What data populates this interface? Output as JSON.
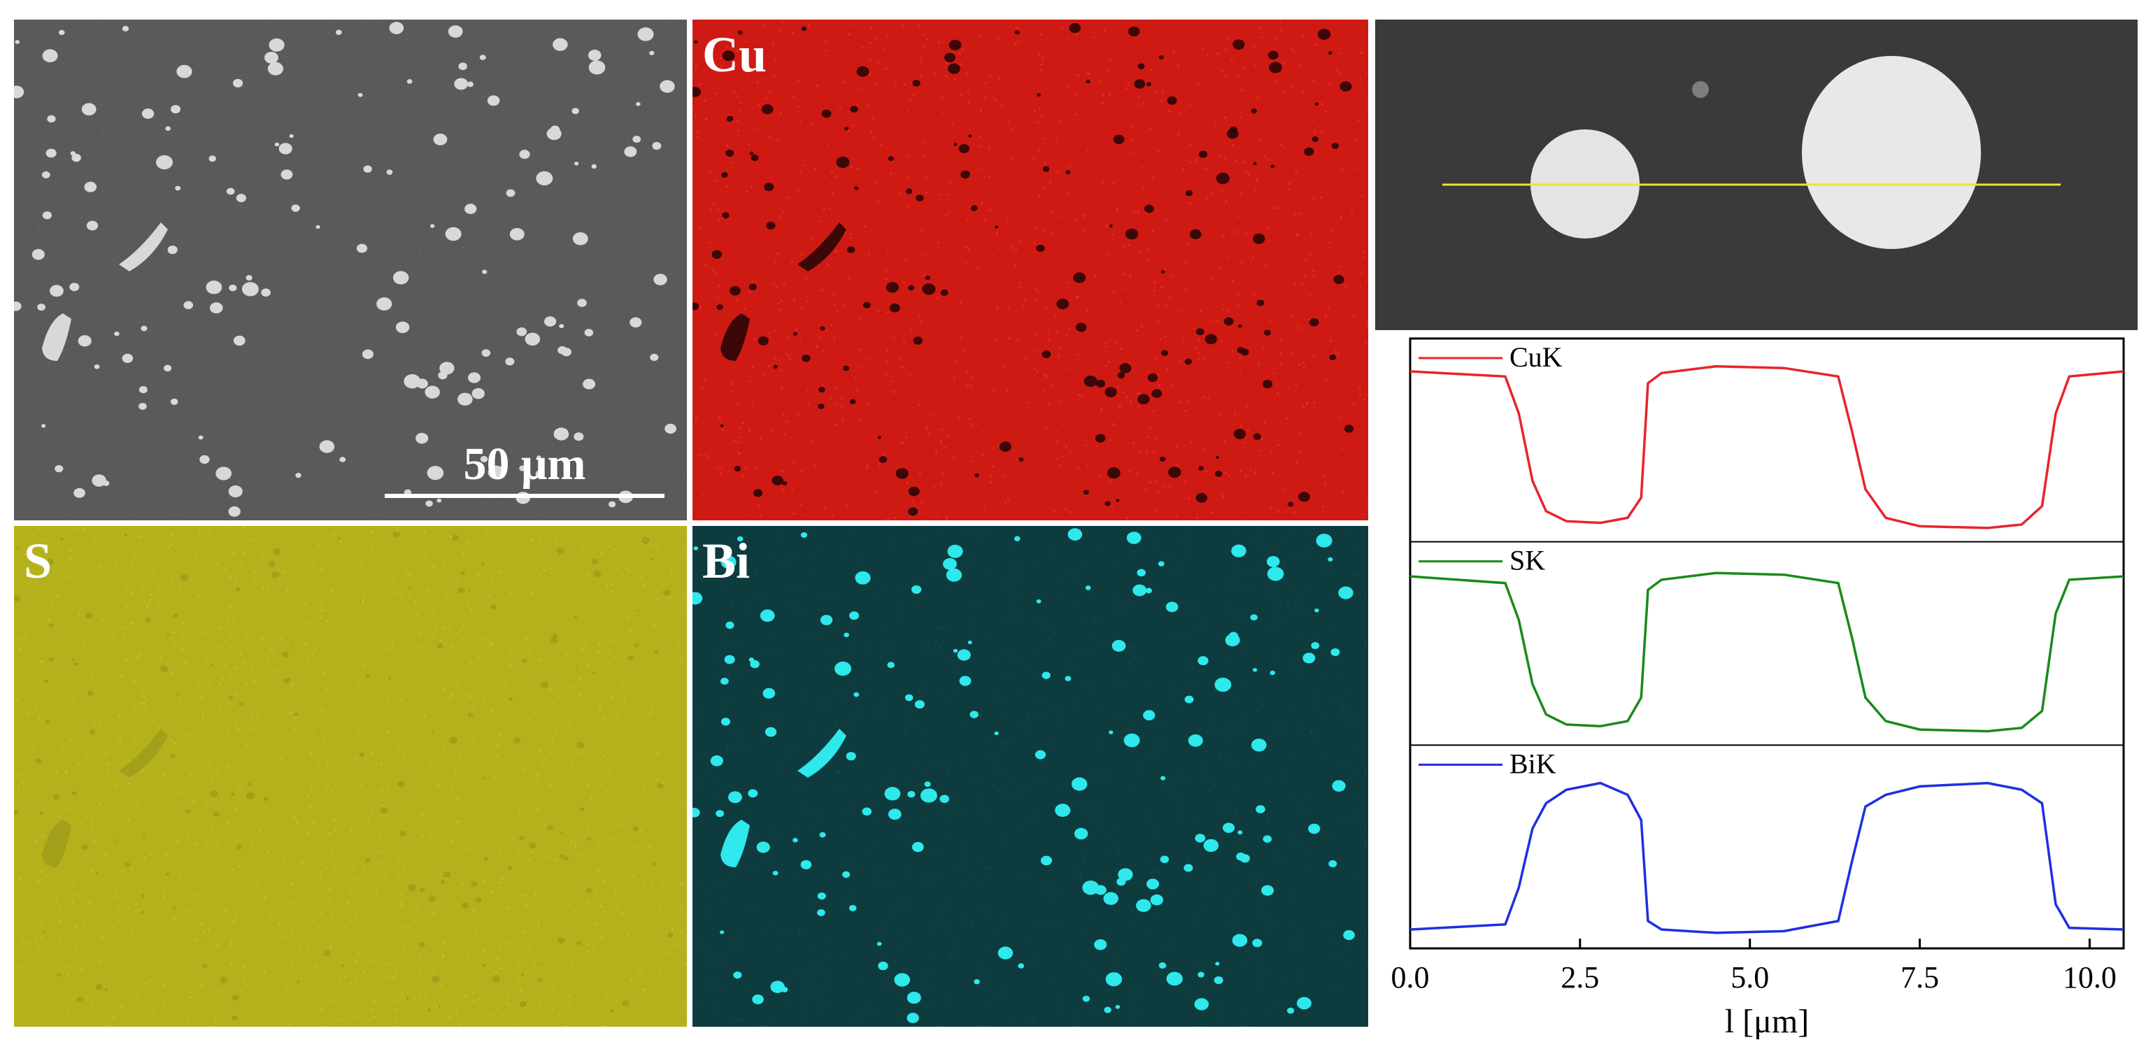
{
  "panels": {
    "sem": {
      "scale_bar_label": "50 μm",
      "bg": "#5a5a5a",
      "particle_color": "#d8d8d8"
    },
    "cu": {
      "label": "Cu",
      "bg": "#cf1a14",
      "particle_color": "#2a0606"
    },
    "s": {
      "label": "S",
      "bg": "#b5b11c",
      "particle_color": "#6b6a14"
    },
    "bi": {
      "label": "Bi",
      "bg": "#0d3b3e",
      "particle_color": "#2ee8ec"
    },
    "line_scan_image": {
      "bg": "#3c3c3c",
      "scan_line_color": "#e8e830"
    }
  },
  "chart_data": {
    "type": "line",
    "xlabel": "l [μm]",
    "xlim": [
      0,
      10.5
    ],
    "x_ticks": [
      "0.0",
      "2.5",
      "5.0",
      "7.5",
      "10.0"
    ],
    "x_tick_values": [
      0,
      2.5,
      5.0,
      7.5,
      10.0
    ],
    "legend_position": "top-left of each stacked panel",
    "series": [
      {
        "name": "CuK",
        "color": "#e8242a",
        "x": [
          0,
          1.4,
          1.6,
          1.8,
          2.0,
          2.3,
          2.8,
          3.2,
          3.4,
          3.5,
          3.7,
          4.5,
          5.5,
          6.3,
          6.5,
          6.7,
          7.0,
          7.5,
          8.5,
          9.0,
          9.3,
          9.5,
          9.7,
          10.5
        ],
        "values": [
          0.95,
          0.92,
          0.7,
          0.3,
          0.12,
          0.06,
          0.05,
          0.08,
          0.2,
          0.88,
          0.94,
          0.98,
          0.97,
          0.92,
          0.6,
          0.25,
          0.08,
          0.03,
          0.02,
          0.04,
          0.15,
          0.7,
          0.92,
          0.95
        ]
      },
      {
        "name": "SK",
        "color": "#1a8a1a",
        "x": [
          0,
          1.4,
          1.6,
          1.8,
          2.0,
          2.3,
          2.8,
          3.2,
          3.4,
          3.5,
          3.7,
          4.5,
          5.5,
          6.3,
          6.5,
          6.7,
          7.0,
          7.5,
          8.5,
          9.0,
          9.3,
          9.5,
          9.7,
          10.5
        ],
        "values": [
          0.94,
          0.9,
          0.68,
          0.3,
          0.12,
          0.06,
          0.05,
          0.08,
          0.22,
          0.86,
          0.92,
          0.96,
          0.95,
          0.9,
          0.58,
          0.22,
          0.08,
          0.03,
          0.02,
          0.04,
          0.14,
          0.72,
          0.92,
          0.94
        ]
      },
      {
        "name": "BiK",
        "color": "#1f2fe0",
        "x": [
          0,
          1.4,
          1.6,
          1.8,
          2.0,
          2.3,
          2.8,
          3.2,
          3.4,
          3.5,
          3.7,
          4.5,
          5.5,
          6.3,
          6.5,
          6.7,
          7.0,
          7.5,
          8.5,
          9.0,
          9.3,
          9.5,
          9.7,
          10.5
        ],
        "values": [
          0.05,
          0.08,
          0.3,
          0.65,
          0.8,
          0.88,
          0.92,
          0.85,
          0.7,
          0.1,
          0.05,
          0.03,
          0.04,
          0.1,
          0.45,
          0.78,
          0.85,
          0.9,
          0.92,
          0.88,
          0.8,
          0.2,
          0.06,
          0.05
        ]
      }
    ]
  }
}
